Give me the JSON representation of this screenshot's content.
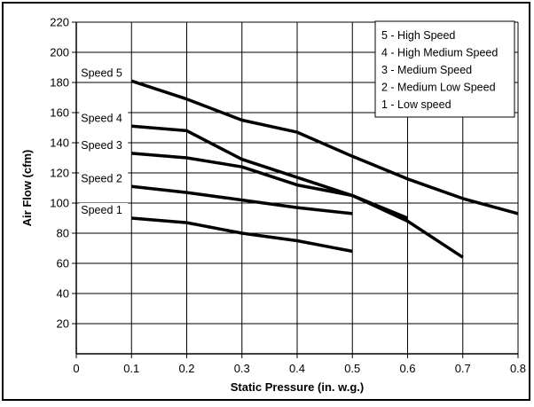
{
  "chart_data": {
    "type": "line",
    "xlabel": "Static Pressure (in. w.g.)",
    "ylabel": "Air Flow (cfm)",
    "xlim": [
      0,
      0.8
    ],
    "ylim": [
      0,
      220
    ],
    "x_ticks": [
      "0",
      "0.1",
      "0.2",
      "0.3",
      "0.4",
      "0.5",
      "0.6",
      "0.7",
      "0.8"
    ],
    "y_ticks": [
      "20",
      "40",
      "60",
      "80",
      "100",
      "120",
      "140",
      "160",
      "180",
      "200",
      "220"
    ],
    "grid": true,
    "legend_position": "top-right",
    "legend": [
      "5 - High Speed",
      "4 - High Medium Speed",
      "3 - Medium Speed",
      "2 - Medium Low Speed",
      "1 - Low speed"
    ],
    "line_color": "#000000",
    "series": [
      {
        "name": "Speed 5",
        "x": [
          0.1,
          0.2,
          0.3,
          0.4,
          0.5,
          0.6,
          0.7,
          0.8
        ],
        "y": [
          181,
          169,
          155,
          147,
          131,
          116,
          103,
          93
        ]
      },
      {
        "name": "Speed 4",
        "x": [
          0.1,
          0.2,
          0.3,
          0.4,
          0.5,
          0.6,
          0.7
        ],
        "y": [
          151,
          148,
          129,
          117,
          105,
          88,
          64
        ]
      },
      {
        "name": "Speed 3",
        "x": [
          0.1,
          0.2,
          0.3,
          0.4,
          0.5,
          0.6
        ],
        "y": [
          133,
          130,
          124,
          112,
          105,
          90
        ]
      },
      {
        "name": "Speed 2",
        "x": [
          0.1,
          0.2,
          0.3,
          0.4,
          0.5
        ],
        "y": [
          111,
          107,
          102,
          97,
          93
        ]
      },
      {
        "name": "Speed 1",
        "x": [
          0.1,
          0.2,
          0.3,
          0.4,
          0.5
        ],
        "y": [
          90,
          87,
          80,
          75,
          68
        ]
      }
    ]
  }
}
